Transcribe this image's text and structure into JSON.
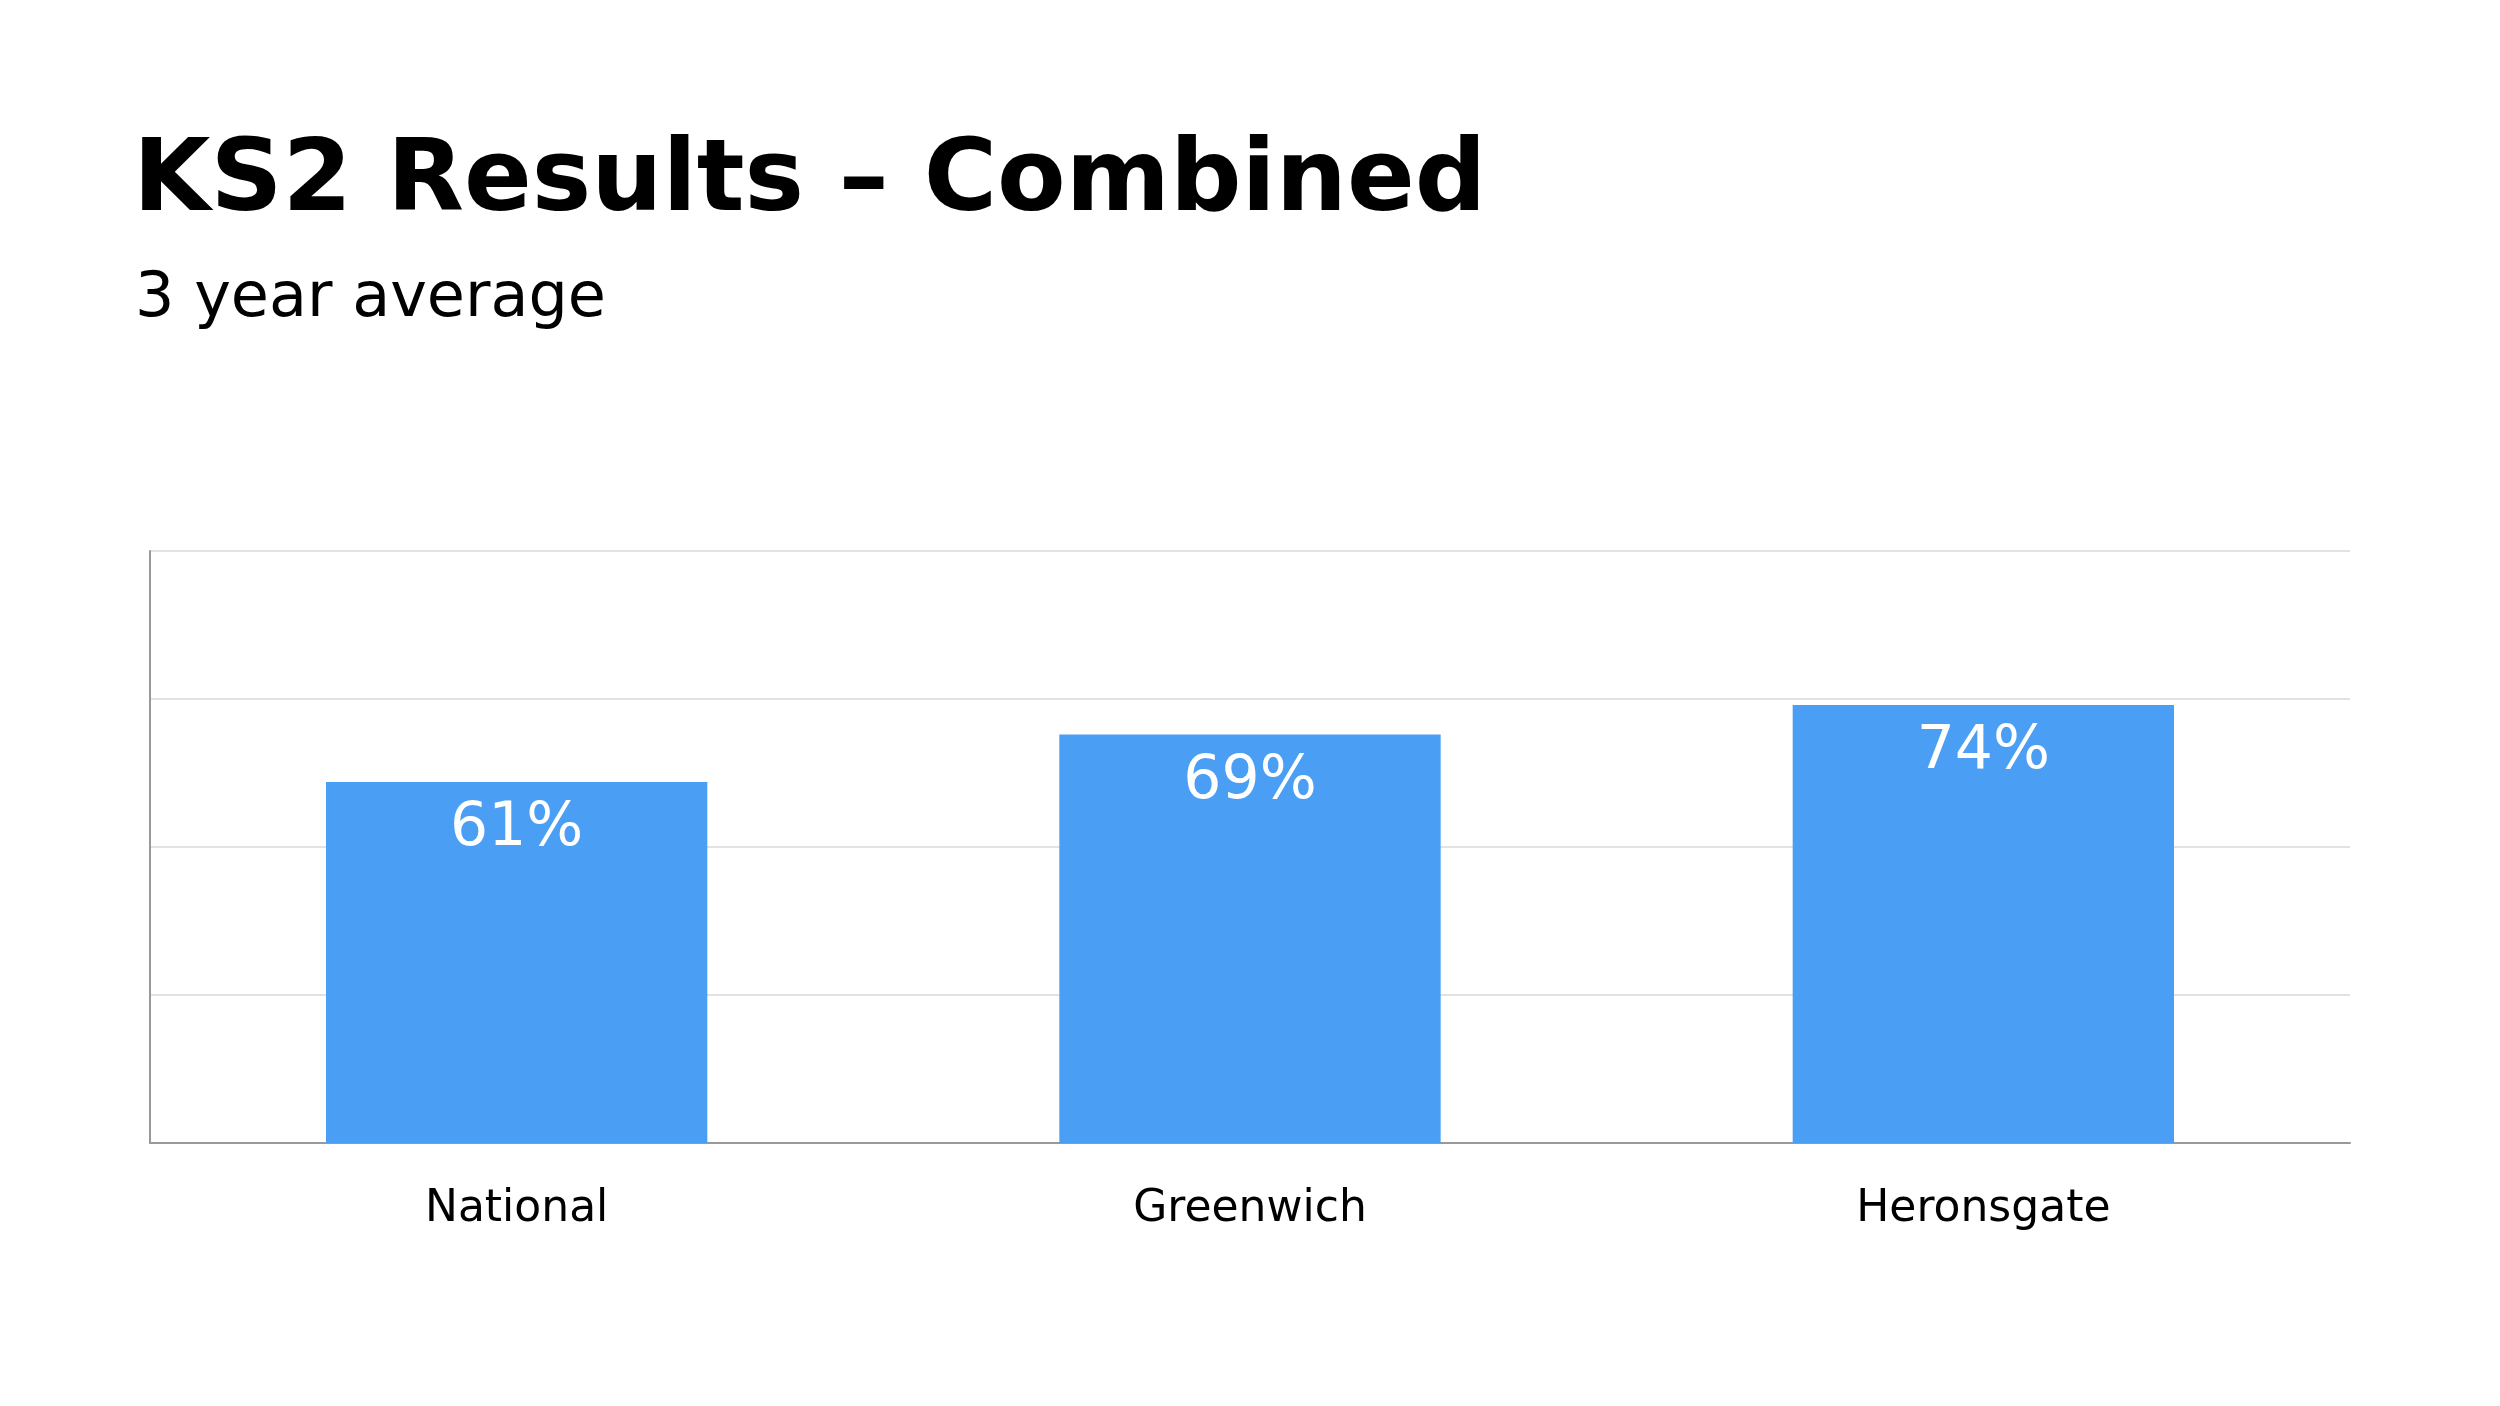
{
  "chart_data": {
    "type": "bar",
    "title": "KS2 Results – Combined",
    "subtitle": "3 year average",
    "categories": [
      "National",
      "Greenwich",
      "Heronsgate"
    ],
    "values": [
      61,
      69,
      74
    ],
    "color": "#4a9ff5",
    "value_labels": [
      "61%",
      "69%",
      "74%"
    ],
    "ylim": [
      0,
      100
    ],
    "yticks": [
      {
        "value": 0,
        "label": null
      },
      {
        "value": 25,
        "label": null
      },
      {
        "value": 50,
        "label": null
      },
      {
        "value": 75,
        "label": null
      },
      {
        "value": 100,
        "label": null
      }
    ],
    "tick_labels": "x",
    "grid": "y"
  }
}
